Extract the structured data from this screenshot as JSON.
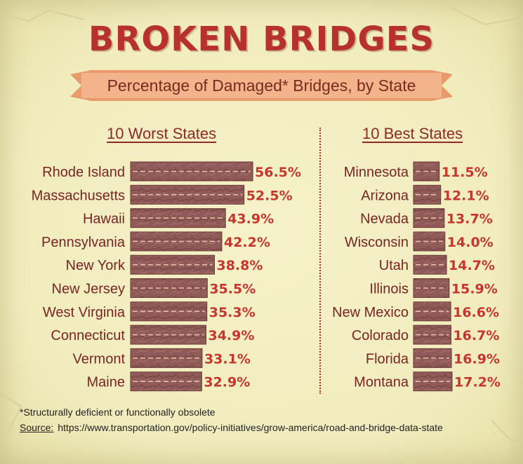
{
  "title": "BROKEN BRIDGES",
  "subtitle": "Percentage of Damaged* Bridges, by State",
  "footnote": "*Structurally deficient or functionally obsolete",
  "source_label": "Source:",
  "source_url": "https://www.transportation.gov/policy-initiatives/grow-america/road-and-bridge-data-state",
  "colors": {
    "title": "#b7312f",
    "banner": "#f0a87a",
    "bar": "#8f5a58",
    "value": "#c6362f",
    "label": "#7a2424"
  },
  "chart_data": [
    {
      "type": "bar",
      "orientation": "horizontal",
      "title": "10 Worst States",
      "categories": [
        "Rhode Island",
        "Massachusetts",
        "Hawaii",
        "Pennsylvania",
        "New York",
        "New Jersey",
        "West Virginia",
        "Connecticut",
        "Vermont",
        "Maine"
      ],
      "values": [
        56.5,
        52.5,
        43.9,
        42.2,
        38.8,
        35.5,
        35.3,
        34.9,
        33.1,
        32.9
      ],
      "value_labels": [
        "56.5%",
        "52.5%",
        "43.9%",
        "42.2%",
        "38.8%",
        "35.5%",
        "35.3%",
        "34.9%",
        "33.1%",
        "32.9%"
      ],
      "unit": "%"
    },
    {
      "type": "bar",
      "orientation": "horizontal",
      "title": "10 Best States",
      "categories": [
        "Minnesota",
        "Arizona",
        "Nevada",
        "Wisconsin",
        "Utah",
        "Illinois",
        "New Mexico",
        "Colorado",
        "Florida",
        "Montana"
      ],
      "values": [
        11.5,
        12.1,
        13.7,
        14.0,
        14.7,
        15.9,
        16.6,
        16.7,
        16.9,
        17.2
      ],
      "value_labels": [
        "11.5%",
        "12.1%",
        "13.7%",
        "14.0%",
        "14.7%",
        "15.9%",
        "16.6%",
        "16.7%",
        "16.9%",
        "17.2%"
      ],
      "unit": "%"
    }
  ]
}
